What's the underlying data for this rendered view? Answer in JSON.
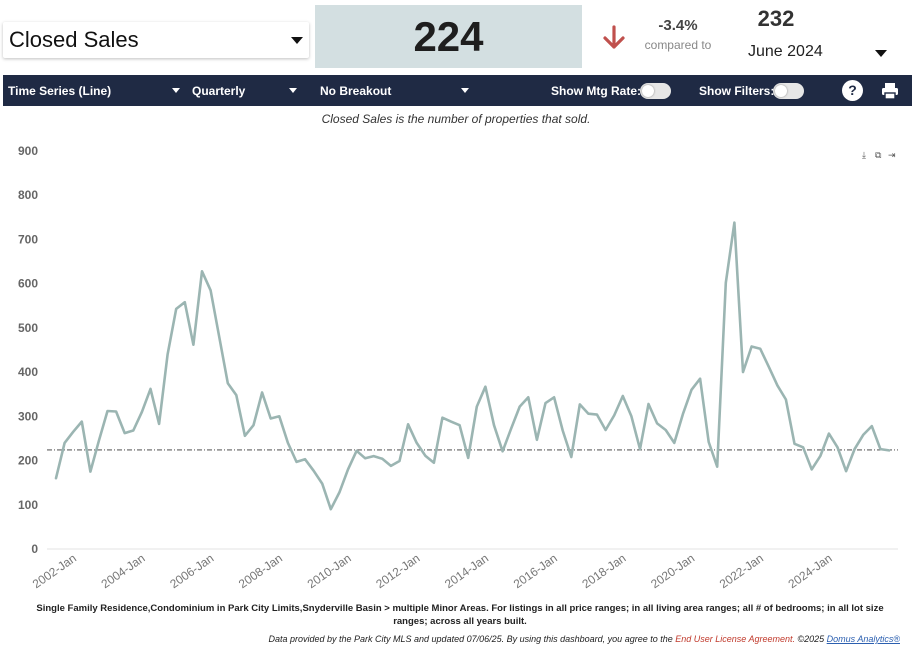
{
  "metric": {
    "label": "Closed Sales"
  },
  "kpi": {
    "value": "224",
    "change": "-3.4%",
    "compared_label": "compared to",
    "compare_value": "232",
    "compare_period": "June 2024"
  },
  "toolbar": {
    "chart_type": "Time Series (Line)",
    "interval": "Quarterly",
    "breakout": "No Breakout",
    "mtg_label": "Show Mtg Rate:",
    "filters_label": "Show Filters:",
    "help": "?"
  },
  "description": "Closed Sales is the number of properties that sold.",
  "footnote": "Single Family Residence,Condominium in Park City Limits,Snyderville Basin > multiple Minor Areas. For listings in all price ranges; in all living area ranges; all # of bedrooms; in all lot size ranges; across all years built.",
  "credits": {
    "text": "Data provided by the Park City MLS and updated 07/06/25.  By using this dashboard, you agree to the",
    "link": "End User License Agreement.",
    "copyright": "©2025",
    "brand": "Domus Analytics®"
  },
  "colors": {
    "line": "#9bb5b2",
    "toolbar": "#1f2a44",
    "kpi_bg": "#d3dfe1",
    "arrow": "#c0504d"
  },
  "chart_data": {
    "type": "line",
    "ylim": [
      0,
      900
    ],
    "yticks": [
      "0",
      "100",
      "200",
      "300",
      "400",
      "500",
      "600",
      "700",
      "800",
      "900"
    ],
    "xtick_labels": [
      "2002-Jan",
      "2004-Jan",
      "2006-Jan",
      "2008-Jan",
      "2010-Jan",
      "2012-Jan",
      "2014-Jan",
      "2016-Jan",
      "2018-Jan",
      "2020-Jan",
      "2022-Jan",
      "2024-Jan"
    ],
    "reference_line": 224,
    "grid": false,
    "series": [
      {
        "values": [
          160,
          240,
          265,
          288,
          175,
          245,
          312,
          311,
          262,
          268,
          310,
          362,
          283,
          440,
          543,
          558,
          462,
          628,
          585,
          480,
          375,
          348,
          256,
          280,
          354,
          295,
          300,
          240,
          197,
          203,
          177,
          148,
          90,
          128,
          180,
          222,
          205,
          210,
          204,
          188,
          199,
          282,
          240,
          211,
          195,
          297,
          288,
          280,
          206,
          322,
          367,
          280,
          221,
          272,
          322,
          343,
          247,
          330,
          343,
          268,
          208,
          327,
          306,
          304,
          269,
          302,
          346,
          300,
          226,
          328,
          284,
          269,
          240,
          305,
          360,
          385,
          242,
          186,
          602,
          738,
          400,
          458,
          453,
          412,
          370,
          338,
          238,
          230,
          180,
          210,
          261,
          230,
          176,
          226,
          258,
          278,
          226,
          223
        ]
      }
    ]
  }
}
